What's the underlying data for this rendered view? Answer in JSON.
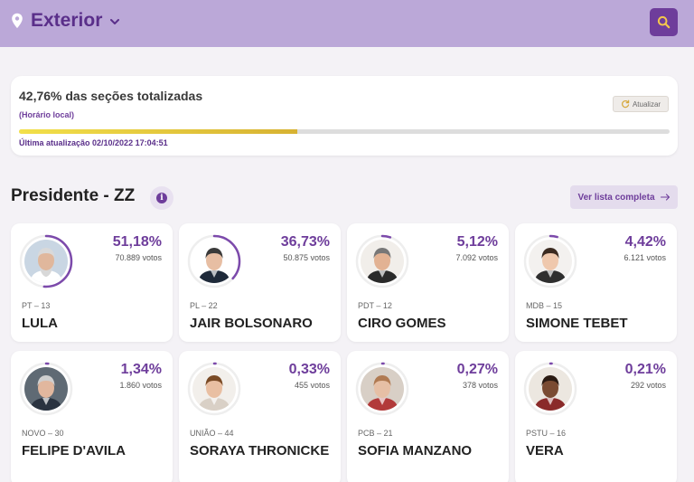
{
  "header": {
    "location_label": "Exterior",
    "colors": {
      "bar": "#bba8d8",
      "accent": "#6e3d9b"
    },
    "icons": [
      "location-pin-icon",
      "chevron-down-icon",
      "search-icon"
    ]
  },
  "status": {
    "title": "42,76% das seções totalizadas",
    "note": "(Horário local)",
    "update_label": "Atualizar",
    "progress_pct": 42.76,
    "last_update": "Última atualização 02/10/2022 17:04:51"
  },
  "section": {
    "title": "Presidente - ZZ",
    "full_list_label": "Ver lista completa"
  },
  "candidates": [
    {
      "pct": "51,18%",
      "votes": "70.889 votos",
      "party": "PT – 13",
      "name": "LULA",
      "share": 51.18,
      "skin": "#e0b79c",
      "hair": "#d9d9d9",
      "bg": "#c9d6e3",
      "shirt": "#ffffff",
      "beard": true
    },
    {
      "pct": "36,73%",
      "votes": "50.875 votos",
      "party": "PL – 22",
      "name": "JAIR BOLSONARO",
      "share": 36.73,
      "skin": "#e7bea3",
      "hair": "#3a3a3a",
      "bg": "#ffffff",
      "shirt": "#1f2a3a",
      "beard": false
    },
    {
      "pct": "5,12%",
      "votes": "7.092 votos",
      "party": "PDT – 12",
      "name": "CIRO GOMES",
      "share": 5.12,
      "skin": "#e2b293",
      "hair": "#777777",
      "bg": "#f1eeea",
      "shirt": "#2a2a2a",
      "beard": false
    },
    {
      "pct": "4,42%",
      "votes": "6.121 votos",
      "party": "MDB – 15",
      "name": "SIMONE TEBET",
      "share": 4.42,
      "skin": "#efc8ad",
      "hair": "#3b2a20",
      "bg": "#f3f1ef",
      "shirt": "#2f2f2f",
      "beard": false
    },
    {
      "pct": "1,34%",
      "votes": "1.860 votos",
      "party": "NOVO – 30",
      "name": "FELIPE D'AVILA",
      "share": 1.34,
      "skin": "#e1b79e",
      "hair": "#cfcfcf",
      "bg": "#5f6a74",
      "shirt": "#2a3340",
      "beard": false
    },
    {
      "pct": "0,33%",
      "votes": "455 votos",
      "party": "UNIÃO – 44",
      "name": "SORAYA THRONICKE",
      "share": 0.33,
      "skin": "#e9bfa2",
      "hair": "#7a4a25",
      "bg": "#f2efeb",
      "shirt": "#d9d0c6",
      "beard": false
    },
    {
      "pct": "0,27%",
      "votes": "378 votos",
      "party": "PCB – 21",
      "name": "SOFIA MANZANO",
      "share": 0.27,
      "skin": "#e6bfa5",
      "hair": "#b07a52",
      "bg": "#d8cfc6",
      "shirt": "#b23a3a",
      "beard": false
    },
    {
      "pct": "0,21%",
      "votes": "292 votos",
      "party": "PSTU – 16",
      "name": "VERA",
      "share": 0.21,
      "skin": "#7a4b32",
      "hair": "#2a1a12",
      "bg": "#ece7e0",
      "shirt": "#8a2a2a",
      "beard": false
    }
  ]
}
